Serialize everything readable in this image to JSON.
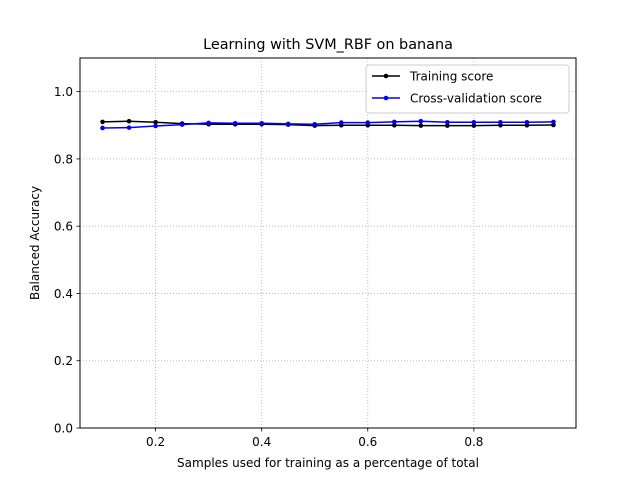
{
  "chart_data": {
    "type": "line",
    "title": "Learning with SVM_RBF on banana",
    "xlabel": "Samples used for training as a percentage of total",
    "ylabel": "Balanced Accuracy",
    "xlim": [
      0.0575,
      0.9925
    ],
    "ylim": [
      0.0,
      1.1
    ],
    "xticks": [
      0.2,
      0.4,
      0.6,
      0.8
    ],
    "xtick_labels": [
      "0.2",
      "0.4",
      "0.6",
      "0.8"
    ],
    "yticks": [
      0.0,
      0.2,
      0.4,
      0.6,
      0.8,
      1.0
    ],
    "ytick_labels": [
      "0.0",
      "0.2",
      "0.4",
      "0.6",
      "0.8",
      "1.0"
    ],
    "grid": true,
    "legend_position": "top-right",
    "x": [
      0.1,
      0.15,
      0.2,
      0.25,
      0.3,
      0.35,
      0.4,
      0.45,
      0.5,
      0.55,
      0.6,
      0.65,
      0.7,
      0.75,
      0.8,
      0.85,
      0.9,
      0.95
    ],
    "series": [
      {
        "name": "Training score",
        "color": "#000000",
        "values": [
          0.91,
          0.912,
          0.909,
          0.905,
          0.903,
          0.903,
          0.903,
          0.902,
          0.899,
          0.9,
          0.9,
          0.9,
          0.899,
          0.899,
          0.899,
          0.9,
          0.9,
          0.901
        ]
      },
      {
        "name": "Cross-validation score",
        "color": "#0000ff",
        "values": [
          0.892,
          0.893,
          0.898,
          0.902,
          0.907,
          0.906,
          0.906,
          0.904,
          0.903,
          0.908,
          0.908,
          0.91,
          0.912,
          0.909,
          0.909,
          0.909,
          0.909,
          0.91
        ]
      }
    ]
  }
}
